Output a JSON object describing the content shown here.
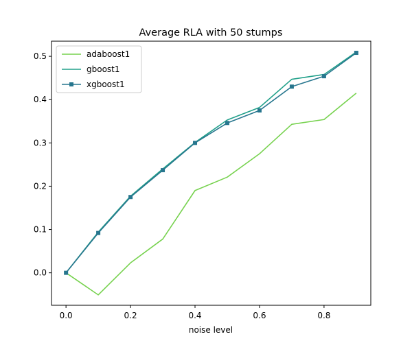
{
  "chart_data": {
    "type": "line",
    "title": "Average RLA with 50 stumps",
    "xlabel": "noise level",
    "ylabel": "",
    "x": [
      0.0,
      0.1,
      0.2,
      0.3,
      0.4,
      0.5,
      0.6,
      0.7,
      0.8,
      0.9
    ],
    "xlim": [
      -0.045,
      0.945
    ],
    "ylim": [
      -0.075,
      0.535
    ],
    "xticks": [
      "0.0",
      "0.2",
      "0.4",
      "0.6",
      "0.8"
    ],
    "xtick_values": [
      0.0,
      0.2,
      0.4,
      0.6,
      0.8
    ],
    "yticks": [
      "0.0",
      "0.1",
      "0.2",
      "0.3",
      "0.4",
      "0.5"
    ],
    "ytick_values": [
      0.0,
      0.1,
      0.2,
      0.3,
      0.4,
      0.5
    ],
    "grid": false,
    "legend_position": "top-left",
    "series": [
      {
        "name": "adaboost1",
        "color": "#77d24f",
        "marker": "none",
        "values": [
          0.0,
          -0.051,
          0.023,
          0.078,
          0.19,
          0.221,
          0.275,
          0.343,
          0.354,
          0.415
        ]
      },
      {
        "name": "gboost1",
        "color": "#21a08a",
        "marker": "none",
        "values": [
          0.0,
          0.094,
          0.177,
          0.24,
          0.301,
          0.353,
          0.382,
          0.447,
          0.458,
          0.51
        ]
      },
      {
        "name": "xgboost1",
        "color": "#27768e",
        "marker": "square",
        "values": [
          0.0,
          0.092,
          0.175,
          0.237,
          0.3,
          0.346,
          0.375,
          0.43,
          0.454,
          0.508
        ]
      }
    ]
  }
}
